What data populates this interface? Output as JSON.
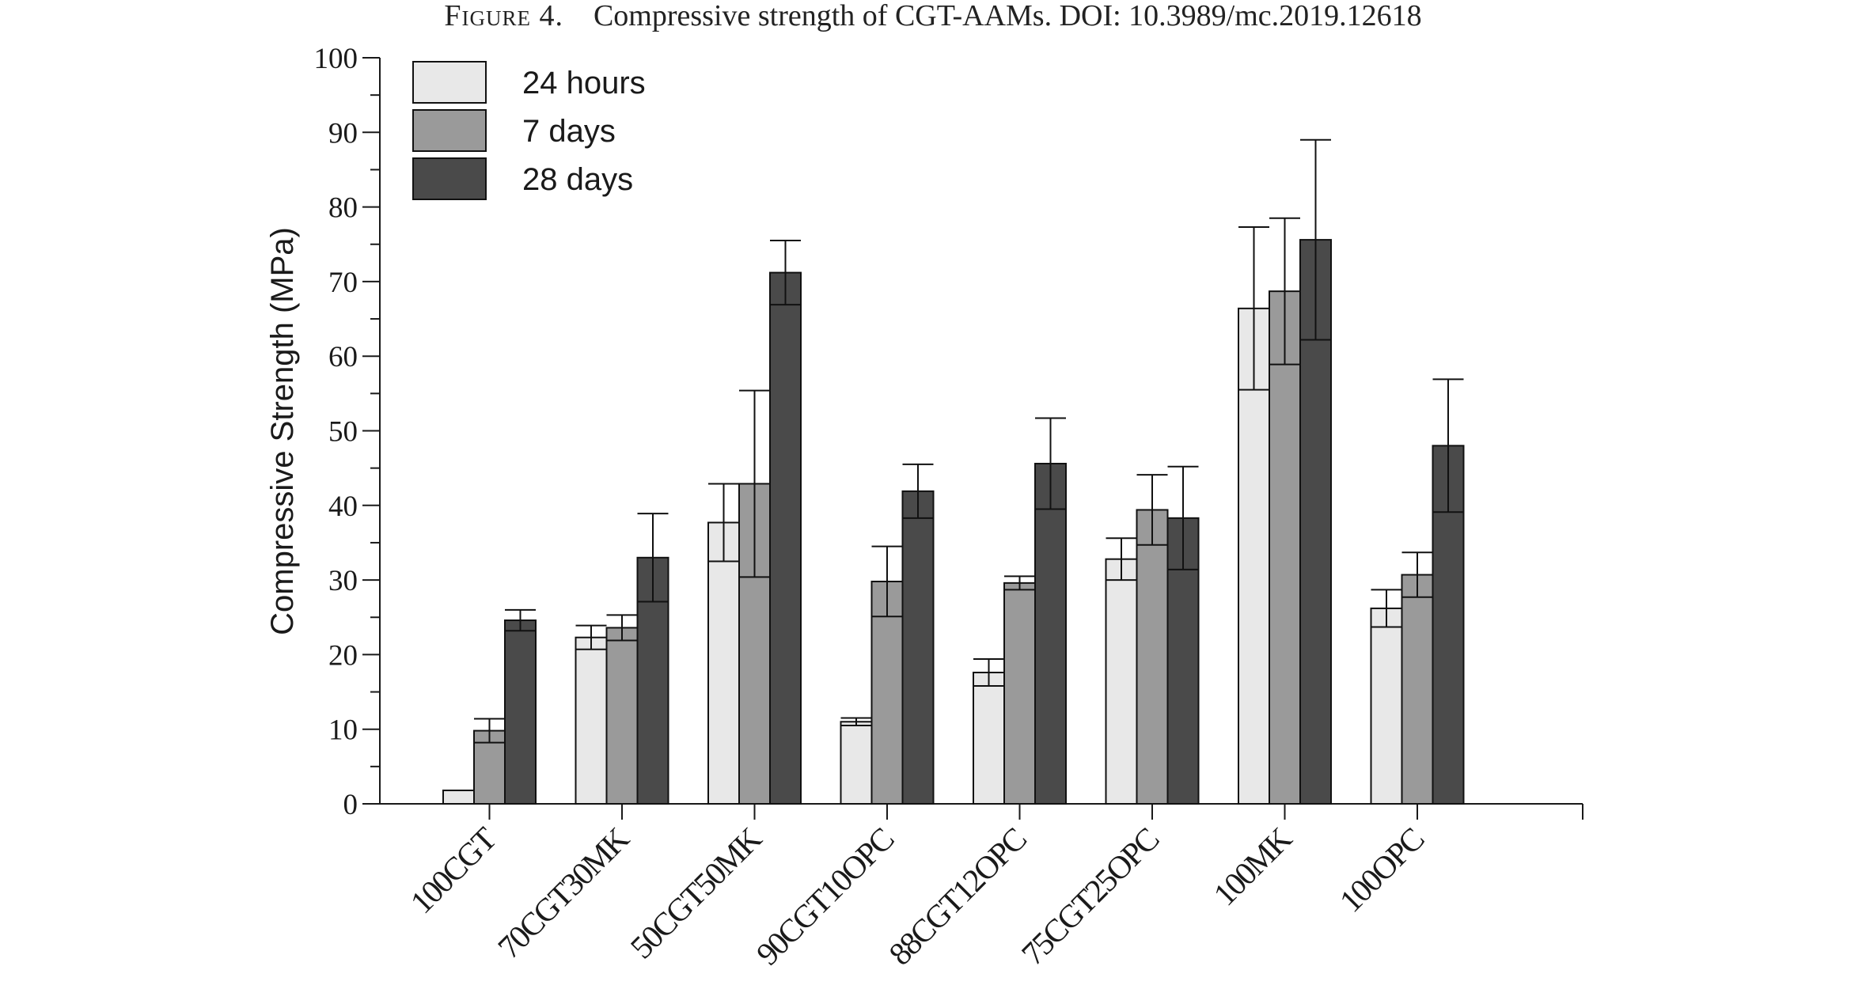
{
  "caption": {
    "label": "Figure 4.",
    "text": "Compressive strength of CGT-AAMs. DOI: 10.3989/mc.2019.12618"
  },
  "chart_data": {
    "type": "bar",
    "title": "",
    "xlabel": "",
    "ylabel": "Compressive Strength (MPa)",
    "ylim": [
      0,
      100
    ],
    "yticks": [
      0,
      10,
      20,
      30,
      40,
      50,
      60,
      70,
      80,
      90,
      100
    ],
    "grid": false,
    "legend_position": "top-left",
    "categories": [
      "100CGT",
      "70CGT30MK",
      "50CGT50MK",
      "90CGT10OPC",
      "88CGT12OPC",
      "75CGT25OPC",
      "100MK",
      "100OPC"
    ],
    "series": [
      {
        "name": "24 hours",
        "color": "#e8e8e8",
        "values": [
          1.8,
          22.3,
          37.7,
          11.0,
          17.6,
          32.8,
          66.4,
          26.2
        ],
        "errors": [
          0.0,
          1.6,
          5.2,
          0.5,
          1.8,
          2.8,
          10.9,
          2.5
        ]
      },
      {
        "name": "7 days",
        "color": "#9a9a9a",
        "values": [
          9.8,
          23.6,
          42.9,
          29.8,
          29.6,
          39.4,
          68.7,
          30.7
        ],
        "errors": [
          1.6,
          1.7,
          12.5,
          4.7,
          0.9,
          4.7,
          9.8,
          3.0
        ]
      },
      {
        "name": "28 days",
        "color": "#4a4a4a",
        "values": [
          24.6,
          33.0,
          71.2,
          41.9,
          45.6,
          38.3,
          75.6,
          48.0
        ],
        "errors": [
          1.4,
          5.9,
          4.3,
          3.6,
          6.1,
          6.9,
          13.4,
          8.9
        ]
      }
    ]
  }
}
